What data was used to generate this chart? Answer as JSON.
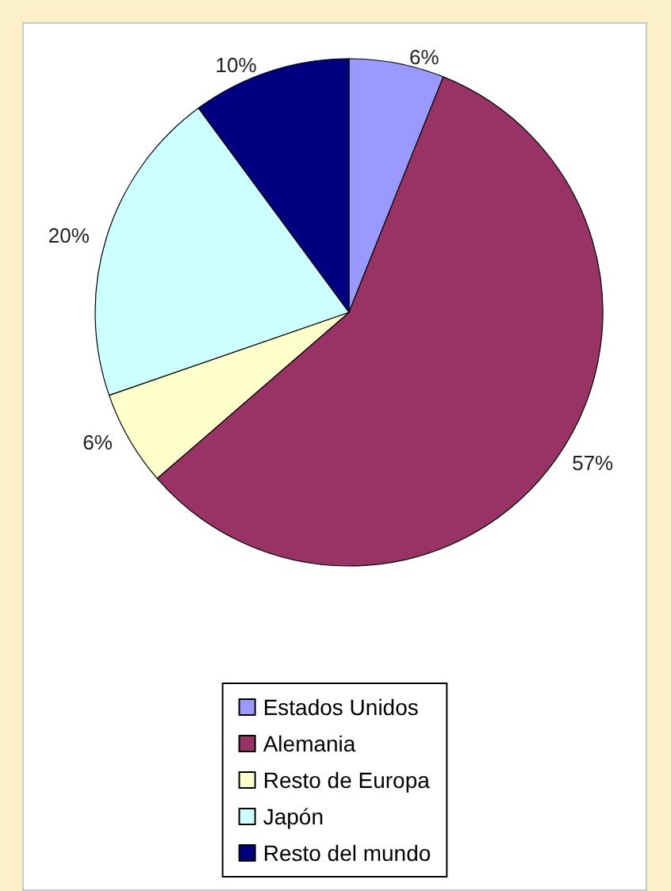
{
  "chart_data": {
    "type": "pie",
    "categories": [
      "Estados Unidos",
      "Alemania",
      "Resto de Europa",
      "Japón",
      "Resto del mundo"
    ],
    "values": [
      6,
      57,
      6,
      20,
      10
    ],
    "value_labels": [
      "6%",
      "57%",
      "6%",
      "20%",
      "10%"
    ],
    "colors": [
      "#9999ff",
      "#993366",
      "#ffffcc",
      "#ccffff",
      "#000080"
    ],
    "legend": "bottom"
  }
}
